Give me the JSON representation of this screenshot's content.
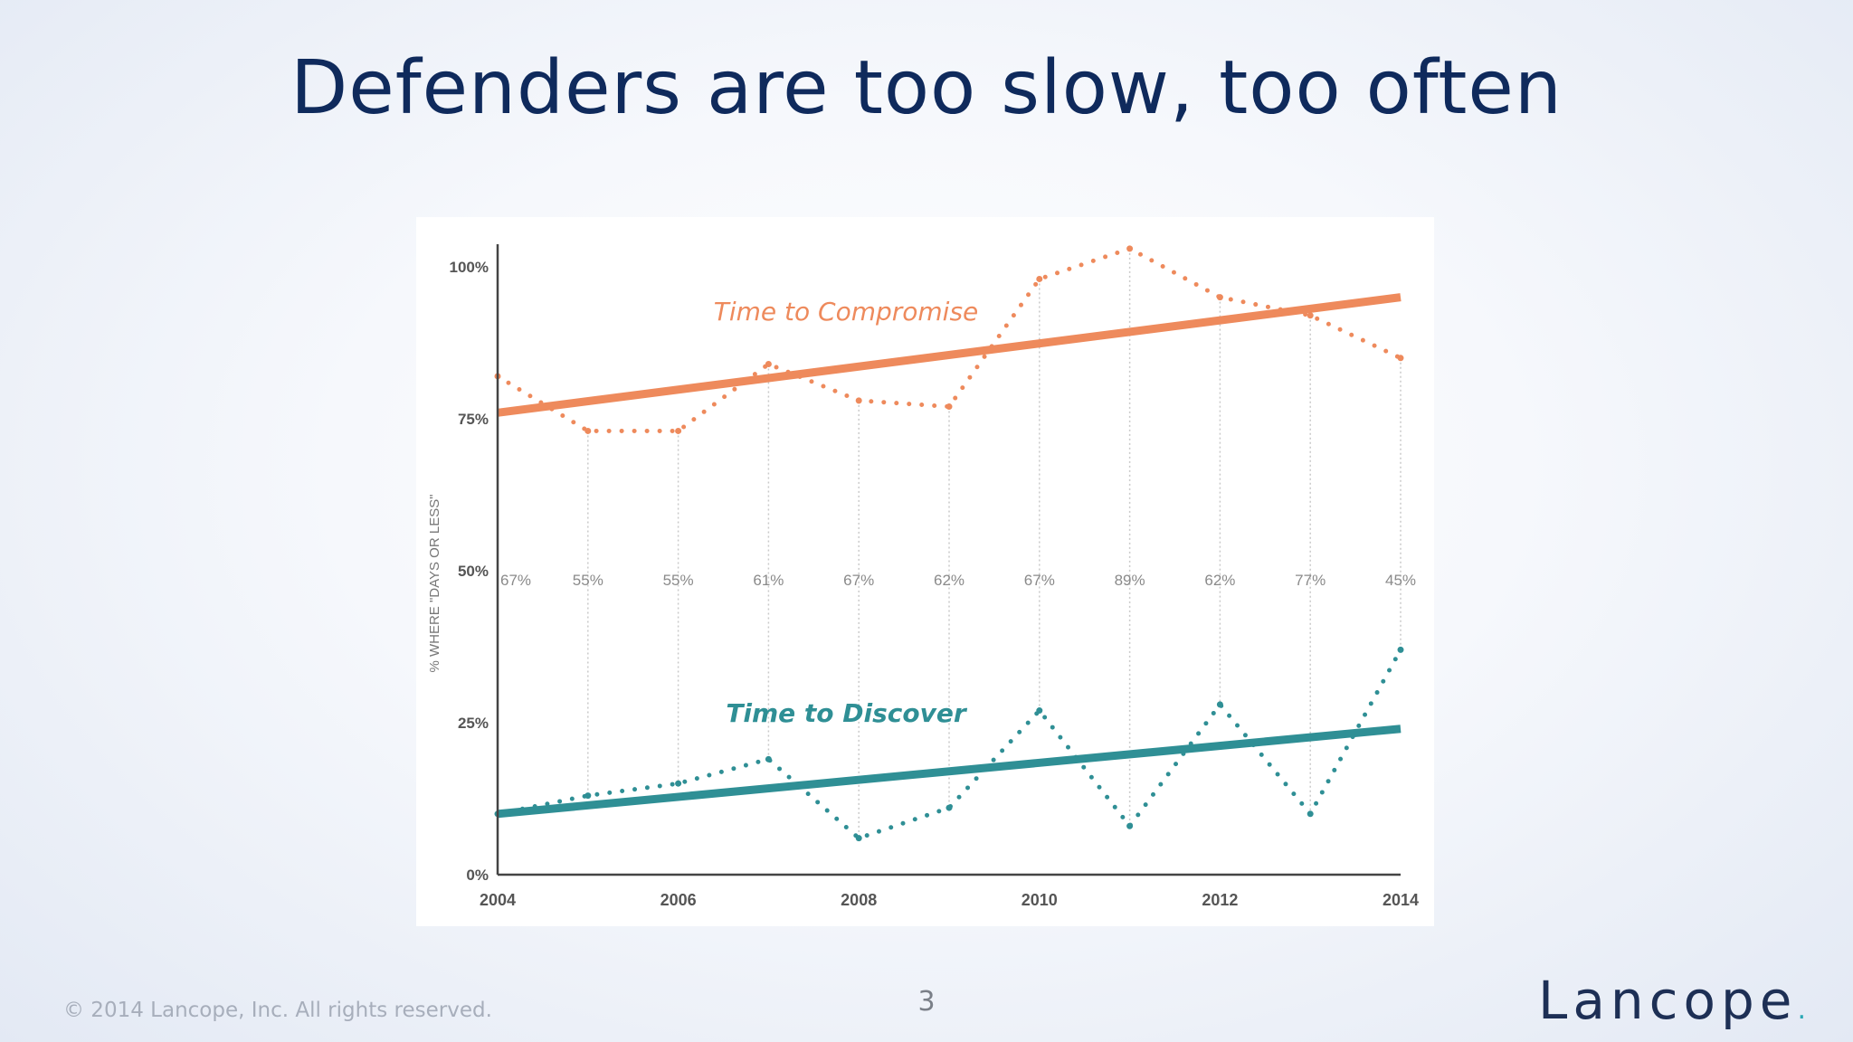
{
  "slide": {
    "title": "Defenders are too slow, too often",
    "footer": "© 2014 Lancope, Inc. All rights reserved.",
    "page_number": "3",
    "logo": "Lancope",
    "logo_dot": "."
  },
  "colors": {
    "compromise": "#ee8a5c",
    "discover": "#2f8f95",
    "axis": "#444444",
    "tick_text": "#555555",
    "guide": "#c9c9c9",
    "pct_text": "#8a8a8a",
    "title": "#0f2a5c",
    "logo_dot": "#2aa8b5"
  },
  "chart_data": {
    "type": "line",
    "ylabel": "% WHERE \"DAYS OR LESS\"",
    "xlabel": "",
    "ylim": [
      0,
      100
    ],
    "xlim": [
      2004,
      2014
    ],
    "y_ticks": [
      {
        "v": 0,
        "label": "0%"
      },
      {
        "v": 25,
        "label": "25%"
      },
      {
        "v": 50,
        "label": "50%"
      },
      {
        "v": 75,
        "label": "75%"
      },
      {
        "v": 100,
        "label": "100%"
      }
    ],
    "x_ticks": [
      {
        "v": 2004,
        "label": "2004"
      },
      {
        "v": 2006,
        "label": "2006"
      },
      {
        "v": 2008,
        "label": "2008"
      },
      {
        "v": 2010,
        "label": "2010"
      },
      {
        "v": 2012,
        "label": "2012"
      },
      {
        "v": 2014,
        "label": "2014"
      }
    ],
    "years": [
      2004,
      2005,
      2006,
      2007,
      2008,
      2009,
      2010,
      2011,
      2012,
      2013,
      2014
    ],
    "gap_labels": [
      "67%",
      "55%",
      "55%",
      "61%",
      "67%",
      "62%",
      "67%",
      "89%",
      "62%",
      "77%",
      "45%"
    ],
    "series": [
      {
        "name": "Time to Compromise",
        "color": "#ee8a5c",
        "values": [
          82,
          73,
          73,
          84,
          78,
          77,
          98,
          103,
          95,
          92,
          85
        ],
        "trend": [
          76,
          95
        ]
      },
      {
        "name": "Time to Discover",
        "color": "#2f8f95",
        "values": [
          10,
          13,
          15,
          19,
          6,
          11,
          27,
          8,
          28,
          10,
          37
        ],
        "trend": [
          10,
          24
        ]
      }
    ],
    "grid": false,
    "legend": "inline labels"
  }
}
